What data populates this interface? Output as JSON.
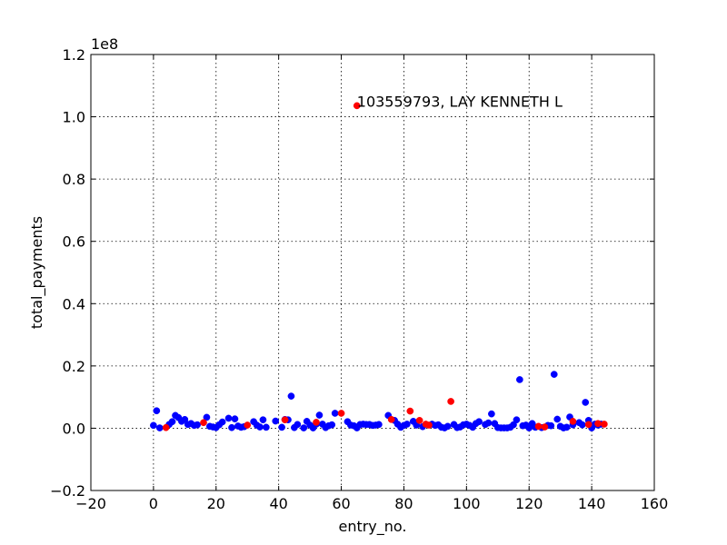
{
  "chart_data": {
    "type": "scatter",
    "xlabel": "entry_no.",
    "ylabel": "total_payments",
    "offset_text": "1e8",
    "xlim": [
      -20,
      160
    ],
    "ylim": [
      -20000000,
      120000000
    ],
    "xticks": [
      -20,
      0,
      20,
      40,
      60,
      80,
      100,
      120,
      140,
      160
    ],
    "xtick_labels": [
      "−20",
      "0",
      "20",
      "40",
      "60",
      "80",
      "100",
      "120",
      "140",
      "160"
    ],
    "yticks": [
      -20000000,
      0,
      20000000,
      40000000,
      60000000,
      80000000,
      100000000,
      120000000
    ],
    "ytick_labels": [
      "−0.2",
      "0.0",
      "0.2",
      "0.4",
      "0.6",
      "0.8",
      "1.0",
      "1.2"
    ],
    "grid": true,
    "colors": {
      "non_poi": "#0000ff",
      "poi": "#ff0000"
    },
    "annotation": {
      "text": "103559793, LAY KENNETH L",
      "x": 65,
      "y": 103559793
    },
    "series": [
      {
        "color_key": "non_poi",
        "x": [
          0,
          1,
          2,
          5,
          6,
          7,
          8,
          9,
          10,
          11,
          12,
          13,
          14,
          17,
          18,
          19,
          20,
          21,
          22,
          24,
          25,
          26,
          27,
          28,
          29,
          32,
          33,
          34,
          35,
          36,
          39,
          41,
          42,
          43,
          44,
          45,
          46,
          48,
          49,
          50,
          51,
          52,
          53,
          54,
          55,
          56,
          57,
          58,
          62,
          63,
          64,
          65,
          66,
          67,
          68,
          69,
          70,
          71,
          72,
          75,
          77,
          78,
          79,
          80,
          81,
          83,
          84,
          86,
          89,
          90,
          91,
          92,
          93,
          94,
          96,
          97,
          98,
          99,
          100,
          101,
          102,
          103,
          104,
          106,
          107,
          108,
          109,
          110,
          111,
          112,
          113,
          114,
          115,
          116,
          117,
          118,
          119,
          120,
          121,
          122,
          124,
          126,
          127,
          128,
          129,
          130,
          131,
          132,
          133,
          134,
          136,
          137,
          138,
          139,
          140,
          141,
          142,
          143
        ],
        "y": [
          900000,
          5600000,
          100000,
          1200000,
          2100000,
          4100000,
          3400000,
          2200000,
          2800000,
          1200000,
          1500000,
          900000,
          1100000,
          3500000,
          600000,
          400000,
          200000,
          1100000,
          2000000,
          3200000,
          200000,
          3000000,
          700000,
          300000,
          500000,
          2100000,
          1000000,
          400000,
          2700000,
          300000,
          2300000,
          300000,
          2800000,
          2700000,
          10300000,
          200000,
          1200000,
          100000,
          2200000,
          1000000,
          100000,
          1300000,
          4200000,
          1300000,
          200000,
          800000,
          1100000,
          4800000,
          2100000,
          1000000,
          800000,
          100000,
          1200000,
          1300000,
          1200000,
          1200000,
          900000,
          1000000,
          1200000,
          4100000,
          2500000,
          1300000,
          300000,
          900000,
          1300000,
          2200000,
          1000000,
          500000,
          1300000,
          900000,
          1100000,
          300000,
          100000,
          600000,
          1200000,
          200000,
          400000,
          1100000,
          1300000,
          900000,
          300000,
          1500000,
          2100000,
          1200000,
          1700000,
          4600000,
          1500000,
          200000,
          100000,
          100000,
          100000,
          300000,
          1100000,
          2700000,
          15600000,
          800000,
          1000000,
          100000,
          1500000,
          300000,
          200000,
          900000,
          800000,
          17300000,
          2900000,
          600000,
          100000,
          300000,
          3600000,
          1100000,
          1800000,
          1100000,
          8300000,
          2500000,
          100000,
          1300000,
          1000000,
          1300000
        ]
      },
      {
        "color_key": "poi",
        "x": [
          4,
          16,
          30,
          42,
          52,
          60,
          65,
          76,
          82,
          85,
          87,
          88,
          95,
          123,
          125,
          134,
          139,
          142,
          144
        ],
        "y": [
          200000,
          1800000,
          1000000,
          2700000,
          1900000,
          4800000,
          103559793,
          2800000,
          5500000,
          2500000,
          1300000,
          1000000,
          8600000,
          600000,
          400000,
          2200000,
          1200000,
          1500000,
          1300000
        ]
      }
    ]
  }
}
